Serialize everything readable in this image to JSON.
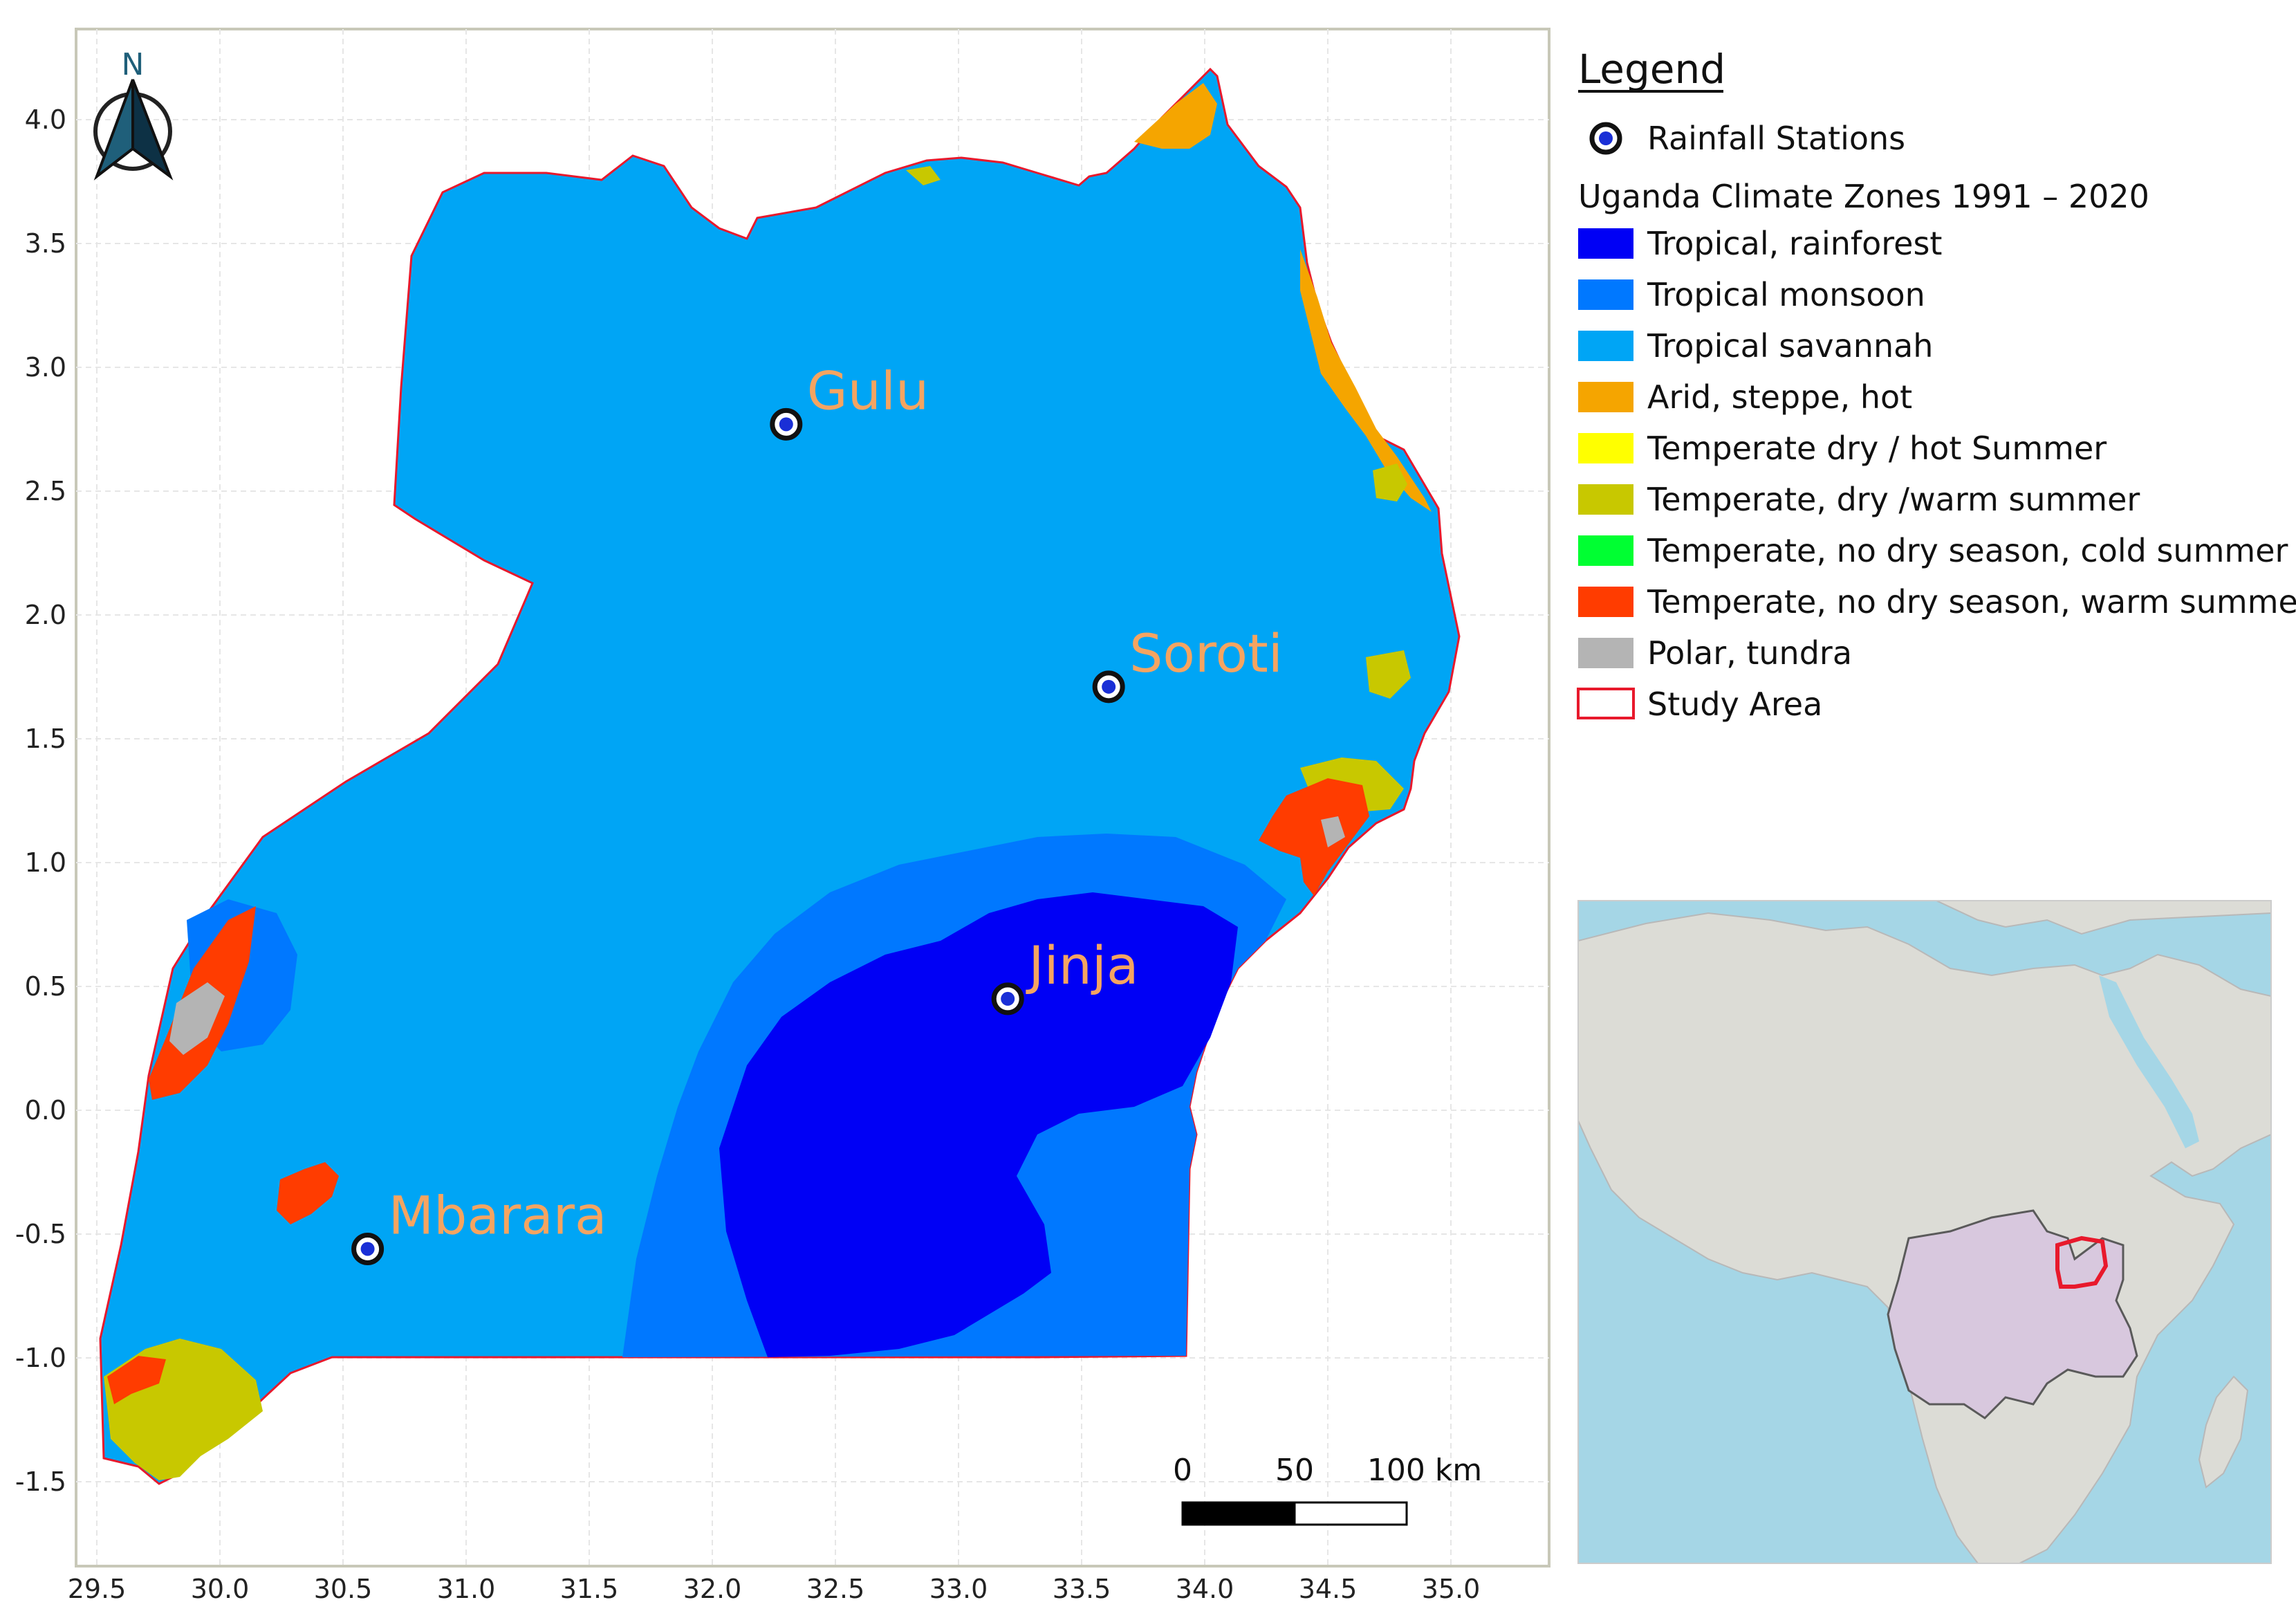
{
  "map": {
    "north_label": "N",
    "x_ticks": [
      "29.5",
      "30.0",
      "30.5",
      "31.0",
      "31.5",
      "32.0",
      "32.5",
      "33.0",
      "33.5",
      "34.0",
      "34.5",
      "35.0"
    ],
    "y_ticks": [
      "4.0",
      "3.5",
      "3.0",
      "2.5",
      "2.0",
      "1.5",
      "1.0",
      "0.5",
      "0.0",
      "-0.5",
      "-1.0",
      "-1.5"
    ],
    "stations": [
      {
        "name": "Gulu",
        "lon": 32.3,
        "lat": 2.77
      },
      {
        "name": "Soroti",
        "lon": 33.61,
        "lat": 1.71
      },
      {
        "name": "Jinja",
        "lon": 33.2,
        "lat": 0.45
      },
      {
        "name": "Mbarara",
        "lon": 30.6,
        "lat": -0.56
      }
    ],
    "scale_bar": {
      "label_0": "0",
      "label_50": "50",
      "label_100": "100 km"
    }
  },
  "legend": {
    "title": "Legend",
    "stations_label": "Rainfall Stations",
    "zones_title": "Uganda Climate Zones 1991 – 2020",
    "items": [
      {
        "label": "Tropical, rainforest",
        "color": "#0000f5"
      },
      {
        "label": "Tropical monsoon",
        "color": "#0078ff"
      },
      {
        "label": "Tropical savannah",
        "color": "#00a5f5"
      },
      {
        "label": "Arid, steppe, hot",
        "color": "#f5a500"
      },
      {
        "label": "Temperate dry / hot Summer",
        "color": "#ffff00"
      },
      {
        "label": "Temperate, dry /warm summer",
        "color": "#c8c800"
      },
      {
        "label": "Temperate, no dry season, cold summer",
        "color": "#00ff32"
      },
      {
        "label": "Temperate, no dry season, warm summer",
        "color": "#ff3c00"
      },
      {
        "label": "Polar, tundra",
        "color": "#b4b4b4"
      }
    ],
    "study_area_label": "Study Area",
    "study_area_color": "#e8192c"
  },
  "colors": {
    "ocean": "#a5d6e6",
    "land": "#dcdcd6",
    "highlight_countries": "#d8c8de",
    "station_blue": "#1a2fd6"
  }
}
